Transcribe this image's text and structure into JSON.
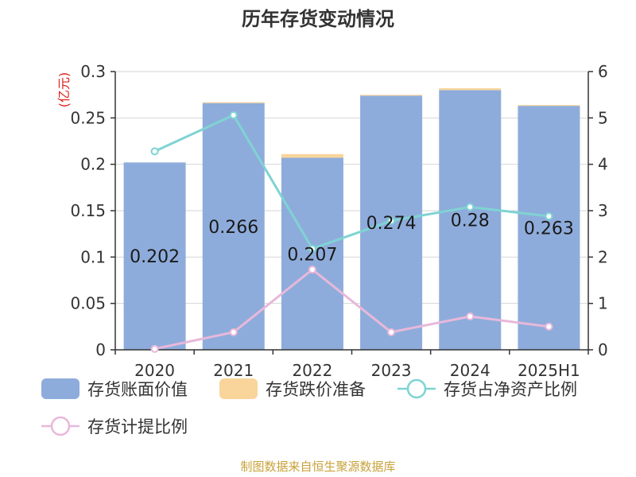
{
  "chart_data": {
    "type": "bar",
    "title": "历年存货变动情况",
    "unit_label": "(亿元)",
    "categories": [
      "2020",
      "2021",
      "2022",
      "2023",
      "2024",
      "2025H1"
    ],
    "y_left": {
      "ylim": [
        0,
        0.3
      ],
      "ticks": [
        0,
        0.05,
        0.1,
        0.15,
        0.2,
        0.25,
        0.3
      ],
      "tick_labels": [
        "0",
        "0.05",
        "0.1",
        "0.15",
        "0.2",
        "0.25",
        "0.3"
      ]
    },
    "y_right": {
      "ylim": [
        0,
        6
      ],
      "ticks": [
        0,
        1,
        2,
        3,
        4,
        5,
        6
      ],
      "tick_labels": [
        "0",
        "1",
        "2",
        "3",
        "4",
        "5",
        "6"
      ]
    },
    "grid": true,
    "legend_position": "bottom",
    "series": [
      {
        "name": "存货账面价值",
        "kind": "bar",
        "axis": "left",
        "stack": "inventory",
        "color": "#8eacdb",
        "values": [
          0.202,
          0.266,
          0.207,
          0.274,
          0.28,
          0.263
        ],
        "labels": [
          "0.202",
          "0.266",
          "0.207",
          "0.274",
          "0.28",
          "0.263"
        ]
      },
      {
        "name": "存货跌价准备",
        "kind": "bar",
        "axis": "left",
        "stack": "inventory",
        "color": "#f9d59b",
        "values": [
          0.0,
          0.001,
          0.004,
          0.001,
          0.002,
          0.001
        ]
      },
      {
        "name": "存货占净资产比例",
        "kind": "line",
        "axis": "right",
        "color": "#7fd3d3",
        "values": [
          4.28,
          5.06,
          2.18,
          2.78,
          3.08,
          2.88
        ]
      },
      {
        "name": "存货计提比例",
        "kind": "line",
        "axis": "right",
        "color": "#e8b8da",
        "values": [
          0.02,
          0.38,
          1.73,
          0.38,
          0.72,
          0.5
        ]
      }
    ]
  },
  "source_note": "制图数据来自恒生聚源数据库"
}
